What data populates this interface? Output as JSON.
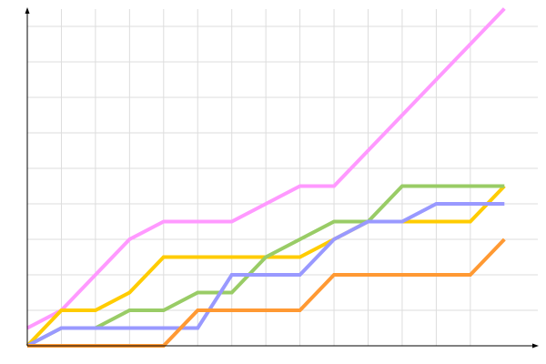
{
  "chart_data": {
    "type": "line",
    "title": "",
    "xlabel": "",
    "ylabel": "",
    "x": [
      0,
      1,
      2,
      3,
      4,
      5,
      6,
      7,
      8,
      9,
      10,
      11,
      12,
      13,
      14
    ],
    "ylim": [
      0,
      9.5
    ],
    "grid": true,
    "series": [
      {
        "color": "#ff99ff",
        "values": [
          0.5,
          1,
          2,
          3,
          3.5,
          3.5,
          3.5,
          4,
          4.5,
          4.5,
          5.5,
          6.5,
          7.5,
          8.5,
          9.5
        ]
      },
      {
        "color": "#ffcc00",
        "values": [
          0,
          1,
          1,
          1.5,
          2.5,
          2.5,
          2.5,
          2.5,
          2.5,
          3,
          3.5,
          3.5,
          3.5,
          3.5,
          4.5
        ]
      },
      {
        "color": "#99cc66",
        "values": [
          0,
          0.5,
          0.5,
          1,
          1,
          1.5,
          1.5,
          2.5,
          3,
          3.5,
          3.5,
          4.5,
          4.5,
          4.5,
          4.5
        ]
      },
      {
        "color": "#9999ff",
        "values": [
          0,
          0.5,
          0.5,
          0.5,
          0.5,
          0.5,
          2,
          2,
          2,
          3,
          3.5,
          3.5,
          4,
          4,
          4
        ]
      },
      {
        "color": "#ff9933",
        "values": [
          0,
          0,
          0,
          0,
          0,
          1,
          1,
          1,
          1,
          2,
          2,
          2,
          2,
          2,
          3
        ]
      }
    ]
  }
}
